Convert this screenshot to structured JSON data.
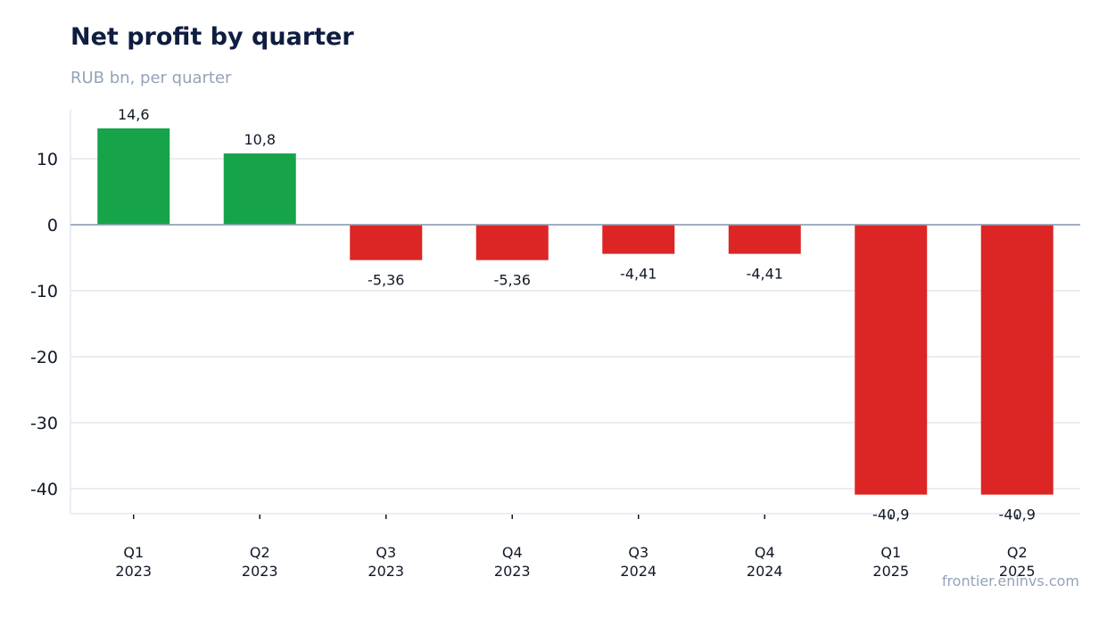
{
  "title": "Net profit by quarter",
  "subtitle": "RUB bn, per quarter",
  "footer": "frontier.eninvs.com",
  "colors": {
    "positive": "#16a34a",
    "negative": "#dc2626",
    "grid": "#e5e7eb",
    "zero_line": "#94a3b8",
    "axis": "#e2e8f0"
  },
  "chart_data": {
    "type": "bar",
    "title": "Net profit by quarter",
    "subtitle": "RUB bn, per quarter",
    "categories": [
      [
        "Q1",
        "2023"
      ],
      [
        "Q2",
        "2023"
      ],
      [
        "Q3",
        "2023"
      ],
      [
        "Q4",
        "2023"
      ],
      [
        "Q3",
        "2024"
      ],
      [
        "Q4",
        "2024"
      ],
      [
        "Q1",
        "2025"
      ],
      [
        "Q2",
        "2025"
      ]
    ],
    "values": [
      14.6,
      10.8,
      -5.36,
      -5.36,
      -4.41,
      -4.41,
      -40.9,
      -40.9
    ],
    "value_labels": [
      "14,6",
      "10,8",
      "-5,36",
      "-5,36",
      "-4,41",
      "-4,41",
      "-40,9",
      "-40,9"
    ],
    "yticks": [
      10,
      0,
      -10,
      -20,
      -30,
      -40
    ],
    "ylim": [
      -43.8,
      17.4
    ],
    "grid": true,
    "legend": "none"
  }
}
